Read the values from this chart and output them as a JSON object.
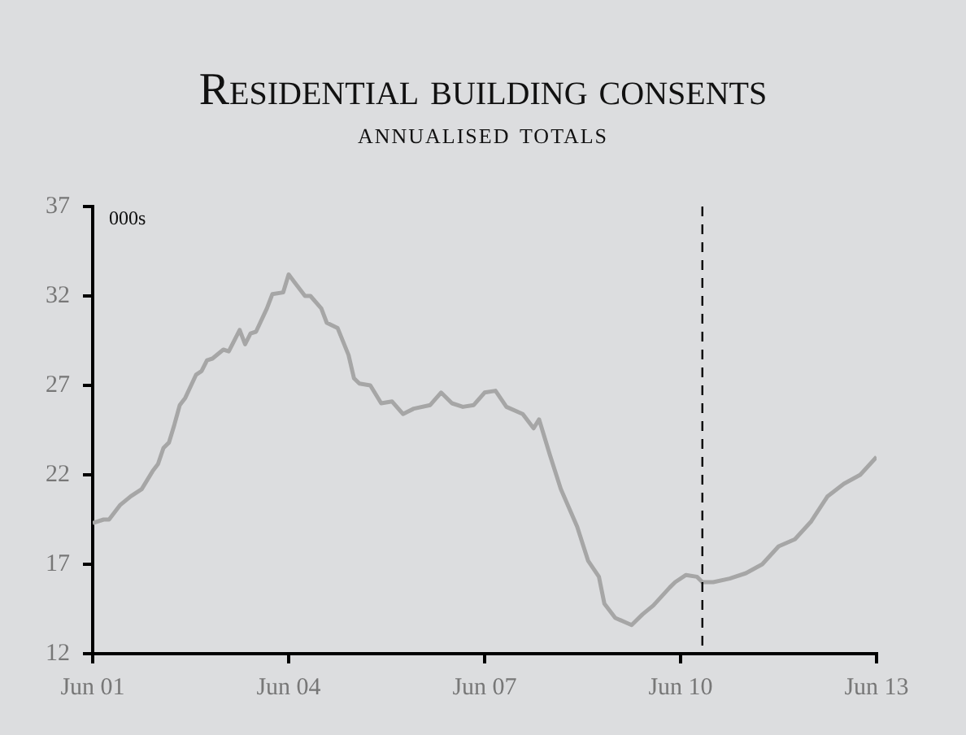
{
  "chart_data": {
    "type": "line",
    "title": "Residential building consents",
    "subtitle": "annualised totals",
    "annotations": [
      "000s"
    ],
    "x": [
      "2001-06",
      "2001-08",
      "2001-09",
      "2001-11",
      "2002-01",
      "2002-03",
      "2002-05",
      "2002-06",
      "2002-07",
      "2002-08",
      "2002-09",
      "2002-10",
      "2002-11",
      "2003-01",
      "2003-02",
      "2003-03",
      "2003-04",
      "2003-06",
      "2003-07",
      "2003-09",
      "2003-10",
      "2003-11",
      "2003-12",
      "2004-02",
      "2004-03",
      "2004-05",
      "2004-06",
      "2004-07",
      "2004-09",
      "2004-10",
      "2004-12",
      "2005-01",
      "2005-03",
      "2005-05",
      "2005-06",
      "2005-07",
      "2005-09",
      "2005-11",
      "2006-01",
      "2006-03",
      "2006-05",
      "2006-08",
      "2006-10",
      "2006-12",
      "2007-02",
      "2007-04",
      "2007-06",
      "2007-08",
      "2007-10",
      "2008-01",
      "2008-03",
      "2008-04",
      "2008-06",
      "2008-08",
      "2008-11",
      "2009-01",
      "2009-03",
      "2009-04",
      "2009-06",
      "2009-09",
      "2009-11",
      "2010-01",
      "2010-04",
      "2010-05",
      "2010-07",
      "2010-09",
      "2010-10",
      "2010-12",
      "2011-03",
      "2011-06",
      "2011-09",
      "2011-12",
      "2012-03",
      "2012-06",
      "2012-09",
      "2012-12",
      "2013-03",
      "2013-06"
    ],
    "series": [
      {
        "color": "#a6a6a6",
        "values": [
          19.3,
          19.5,
          19.5,
          20.3,
          20.8,
          21.2,
          22.2,
          22.6,
          23.5,
          23.8,
          24.8,
          25.9,
          26.3,
          27.6,
          27.8,
          28.4,
          28.5,
          29.0,
          28.9,
          30.1,
          29.3,
          29.9,
          30.0,
          31.3,
          32.1,
          32.2,
          33.2,
          32.8,
          32.0,
          32.0,
          31.3,
          30.5,
          30.2,
          28.7,
          27.4,
          27.1,
          27.0,
          26.0,
          26.1,
          25.4,
          25.7,
          25.9,
          26.6,
          26.0,
          25.8,
          25.9,
          26.6,
          26.7,
          25.8,
          25.4,
          24.6,
          25.1,
          23.1,
          21.2,
          19.1,
          17.2,
          16.3,
          14.8,
          14.0,
          13.6,
          14.2,
          14.7,
          15.7,
          16.0,
          16.4,
          16.3,
          16.0,
          16.0,
          16.2,
          16.5,
          17.0,
          18.0,
          18.4,
          19.4,
          20.8,
          21.5,
          22.0,
          23.0
        ]
      }
    ],
    "xlim": [
      "2001-06",
      "2013-06"
    ],
    "xticks": [
      {
        "value": "2001-06",
        "label": "Jun 01"
      },
      {
        "value": "2004-06",
        "label": "Jun 04"
      },
      {
        "value": "2007-06",
        "label": "Jun 07"
      },
      {
        "value": "2010-06",
        "label": "Jun 10"
      },
      {
        "value": "2013-06",
        "label": "Jun 13"
      }
    ],
    "ylim": [
      12,
      37
    ],
    "yticks": [
      12,
      17,
      22,
      27,
      32,
      37
    ],
    "ref_lines": [
      {
        "axis": "x",
        "value": "2010-10",
        "color": "#000000",
        "line_style": "dashed"
      }
    ],
    "grid": false,
    "legend": false,
    "marker": "none",
    "line_style": "solid"
  }
}
